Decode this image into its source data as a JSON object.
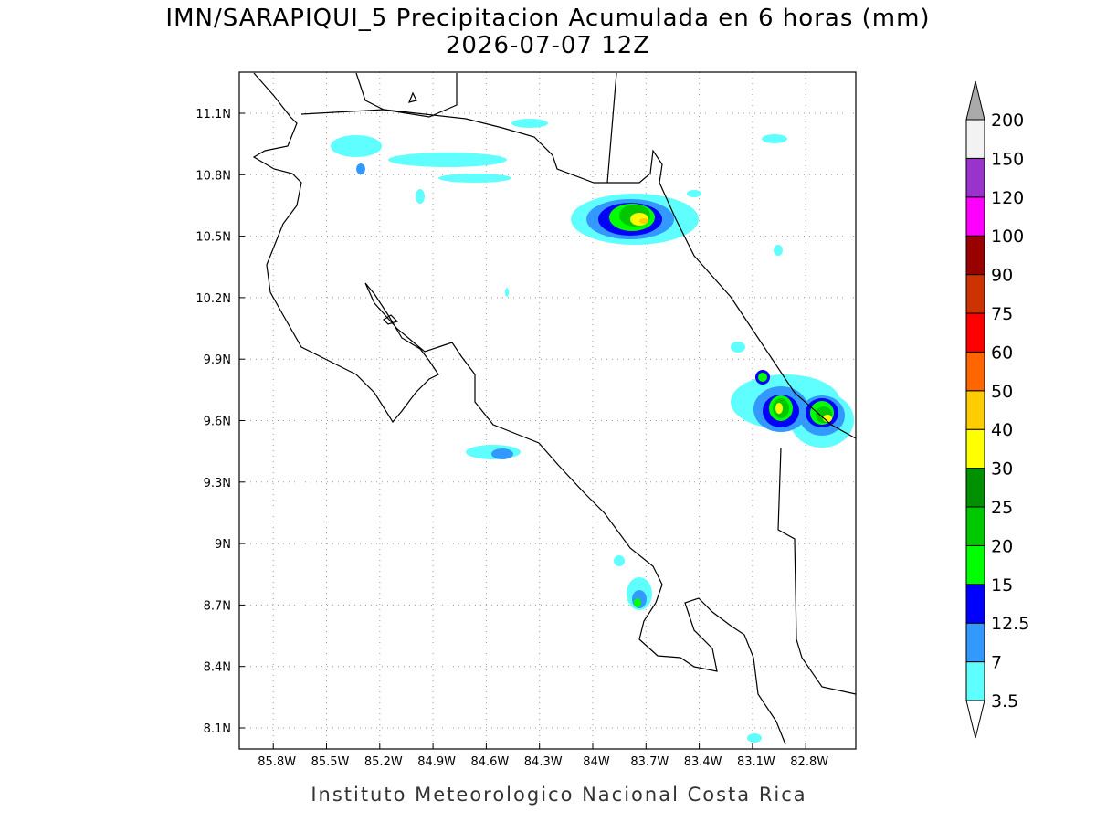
{
  "title": "IMN/SARAPIQUI_5 Precipitacion Acumulada en 6 horas (mm)",
  "subtitle": "2026-07-07 12Z",
  "lon_ticks": [
    {
      "value": -85.8,
      "label": "85.8W"
    },
    {
      "value": -85.5,
      "label": "85.5W"
    },
    {
      "value": -85.2,
      "label": "85.2W"
    },
    {
      "value": -84.9,
      "label": "84.9W"
    },
    {
      "value": -84.6,
      "label": "84.6W"
    },
    {
      "value": -84.3,
      "label": "84.3W"
    },
    {
      "value": -84,
      "label": "84W"
    },
    {
      "value": -83.7,
      "label": "83.7W"
    },
    {
      "value": -83.4,
      "label": "83.4W"
    },
    {
      "value": -83.1,
      "label": "83.1W"
    },
    {
      "value": -82.8,
      "label": "82.8W"
    }
  ],
  "lat_ticks": [
    {
      "value": 11.1,
      "label": "11.1N"
    },
    {
      "value": 10.8,
      "label": "10.8N"
    },
    {
      "value": 10.5,
      "label": "10.5N"
    },
    {
      "value": 10.2,
      "label": "10.2N"
    },
    {
      "value": 9.9,
      "label": "9.9N"
    },
    {
      "value": 9.6,
      "label": "9.6N"
    },
    {
      "value": 9.3,
      "label": "9.3N"
    },
    {
      "value": 9,
      "label": "9N"
    },
    {
      "value": 8.7,
      "label": "8.7N"
    },
    {
      "value": 8.4,
      "label": "8.4N"
    },
    {
      "value": 8.1,
      "label": "8.1N"
    }
  ],
  "colorbar": {
    "levels": [
      3.5,
      7,
      12.5,
      15,
      20,
      25,
      30,
      40,
      50,
      60,
      75,
      90,
      100,
      120,
      150,
      200
    ],
    "colors": [
      "#ffffff",
      "#60ffff",
      "#3399ff",
      "#0000ff",
      "#00ff00",
      "#00c800",
      "#009000",
      "#ffff00",
      "#ffcc00",
      "#ff6600",
      "#ff0000",
      "#cc3300",
      "#990000",
      "#ff00ff",
      "#9933cc",
      "#f2f2f2",
      "#aaaaaa"
    ]
  },
  "footer": "Instituto Meteorologico Nacional Costa Rica"
}
